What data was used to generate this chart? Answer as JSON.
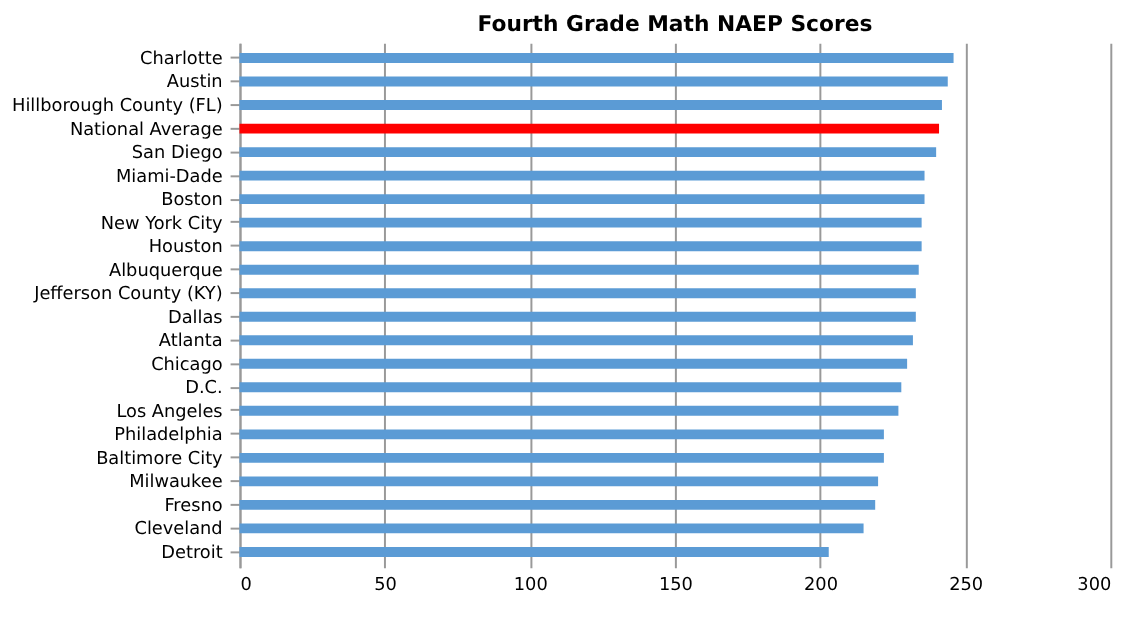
{
  "chart_data": {
    "type": "bar",
    "orientation": "horizontal",
    "title": "Fourth Grade Math NAEP Scores",
    "categories": [
      "Charlotte",
      "Austin",
      "Hillborough County (FL)",
      "National Average",
      "San Diego",
      "Miami-Dade",
      "Boston",
      "New York City",
      "Houston",
      "Albuquerque",
      "Jefferson County (KY)",
      "Dallas",
      "Atlanta",
      "Chicago",
      "D.C.",
      "Los Angeles",
      "Philadelphia",
      "Baltimore City",
      "Milwaukee",
      "Fresno",
      "Cleveland",
      "Detroit"
    ],
    "values": [
      246,
      244,
      242,
      241,
      240,
      236,
      236,
      235,
      235,
      234,
      233,
      233,
      232,
      230,
      228,
      227,
      222,
      222,
      220,
      219,
      215,
      203
    ],
    "colors": [
      "#5b9bd5",
      "#5b9bd5",
      "#5b9bd5",
      "#ff0000",
      "#5b9bd5",
      "#5b9bd5",
      "#5b9bd5",
      "#5b9bd5",
      "#5b9bd5",
      "#5b9bd5",
      "#5b9bd5",
      "#5b9bd5",
      "#5b9bd5",
      "#5b9bd5",
      "#5b9bd5",
      "#5b9bd5",
      "#5b9bd5",
      "#5b9bd5",
      "#5b9bd5",
      "#5b9bd5",
      "#5b9bd5",
      "#5b9bd5"
    ],
    "xlim": [
      0,
      300
    ],
    "xticks": [
      0,
      50,
      100,
      150,
      200,
      250,
      300
    ],
    "grid": "x"
  }
}
